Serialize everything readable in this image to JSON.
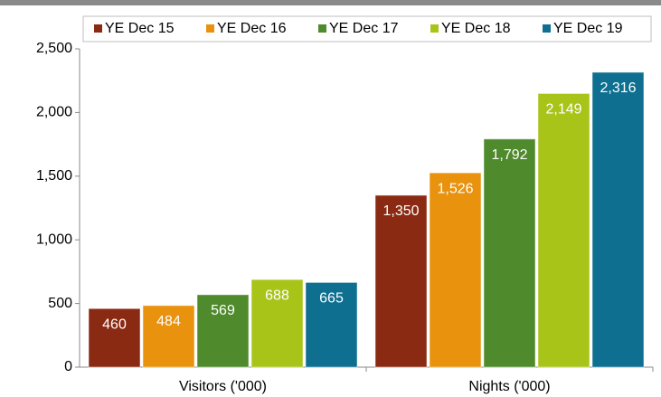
{
  "chart_data": {
    "type": "bar",
    "categories": [
      "Visitors ('000)",
      "Nights ('000)"
    ],
    "series": [
      {
        "name": "YE Dec 15",
        "color": "#8b2a12",
        "values": [
          460,
          1350
        ],
        "value_labels": [
          "460",
          "1,350"
        ]
      },
      {
        "name": "YE Dec 16",
        "color": "#e8920e",
        "values": [
          484,
          1526
        ],
        "value_labels": [
          "484",
          "1,526"
        ]
      },
      {
        "name": "YE Dec 17",
        "color": "#4f8a2c",
        "values": [
          569,
          1792
        ],
        "value_labels": [
          "569",
          "1,792"
        ]
      },
      {
        "name": "YE Dec 18",
        "color": "#a8c418",
        "values": [
          688,
          2149
        ],
        "value_labels": [
          "688",
          "2,149"
        ]
      },
      {
        "name": "YE Dec 19",
        "color": "#0e6f90",
        "values": [
          665,
          2316
        ],
        "value_labels": [
          "665",
          "2,316"
        ]
      }
    ],
    "ylim": [
      0,
      2500
    ],
    "yticks": [
      0,
      500,
      {
        "value": 1000,
        "label": "1,000"
      },
      {
        "value": 1500,
        "label": "1,500"
      },
      {
        "value": 2000,
        "label": "2,000"
      },
      {
        "value": 2500,
        "label": "2,500"
      }
    ],
    "legend": "top"
  }
}
